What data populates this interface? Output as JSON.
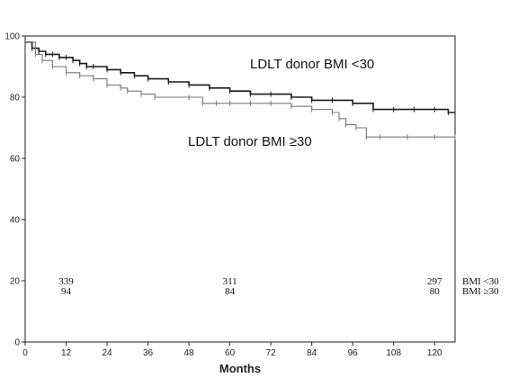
{
  "chart_data": {
    "type": "line",
    "title": "",
    "xlabel": "Months",
    "ylabel": "",
    "xlim": [
      0,
      126
    ],
    "ylim": [
      0,
      100
    ],
    "x_ticks": [
      0,
      12,
      24,
      36,
      48,
      60,
      72,
      84,
      96,
      108,
      120
    ],
    "y_ticks": [
      0,
      20,
      40,
      60,
      80,
      100
    ],
    "grid": false,
    "series": [
      {
        "name": "LDLT donor BMI <30",
        "color": "#1a1a1a",
        "x": [
          0,
          2,
          4,
          6,
          8,
          10,
          12,
          14,
          16,
          18,
          20,
          24,
          28,
          32,
          36,
          42,
          48,
          54,
          60,
          66,
          72,
          78,
          84,
          90,
          96,
          102,
          108,
          114,
          120,
          124,
          126
        ],
        "y": [
          98,
          96,
          95,
          94,
          94,
          93,
          93,
          92,
          91,
          90,
          90,
          89,
          88,
          87,
          86,
          85,
          84,
          83,
          82,
          81,
          81,
          80,
          79,
          79,
          78,
          76,
          76,
          76,
          76,
          75,
          75
        ]
      },
      {
        "name": "LDLT donor BMI ≥30",
        "color": "#7a7a7a",
        "x": [
          0,
          3,
          5,
          8,
          12,
          16,
          20,
          24,
          28,
          30,
          34,
          38,
          48,
          52,
          56,
          60,
          66,
          72,
          78,
          84,
          90,
          92,
          94,
          97,
          100,
          104,
          112,
          120,
          126
        ],
        "y": [
          98,
          94,
          92,
          90,
          88,
          87,
          86,
          84,
          83,
          82,
          81,
          80,
          80,
          78,
          78,
          78,
          78,
          78,
          77,
          76,
          75,
          73,
          71,
          70,
          67,
          67,
          67,
          67,
          67
        ]
      }
    ],
    "curve_labels": [
      "LDLT donor BMI <30",
      "LDLT donor BMI ≥30"
    ],
    "at_risk": {
      "times": [
        12,
        60,
        120
      ],
      "rows": [
        {
          "label": "BMI <30",
          "counts": [
            "339",
            "311",
            "297"
          ]
        },
        {
          "label": "BMI ≥30",
          "counts": [
            "94",
            "84",
            "80"
          ]
        }
      ]
    }
  }
}
